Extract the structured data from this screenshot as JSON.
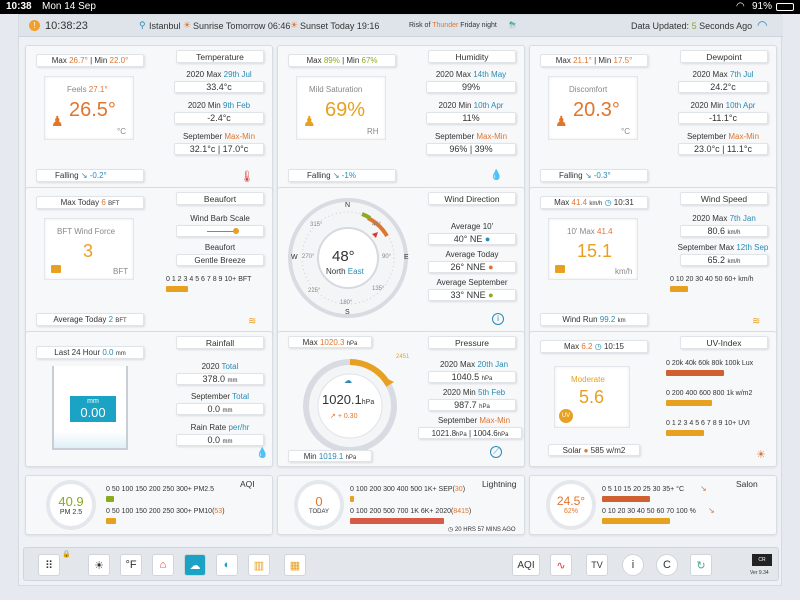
{
  "status": {
    "time": "10:38",
    "date": "Mon 14 Sep",
    "battery": "91%"
  },
  "header": {
    "clock": "10:38:23",
    "city": "Istanbul",
    "sunrise": "Sunrise Tomorrow 06:46",
    "sunset": "Sunset Today 19:16",
    "risk_prefix": "Risk of",
    "risk_word": "Thunder",
    "risk_when": "Friday night",
    "updated_prefix": "Data Updated:",
    "updated_num": "5",
    "updated_suffix": "Seconds Ago"
  },
  "temperature": {
    "title": "Temperature",
    "max_label": "Max",
    "max": "26.7°",
    "min_label": "Min",
    "min": "22.0°",
    "feels_label": "Feels",
    "feels": "27.1°",
    "value": "26.5°",
    "unit": "°C",
    "trend": "Falling",
    "trend_val": "-0.2°",
    "r1_a": "2020 Max",
    "r1_b": "29th Jul",
    "r1_v": "33.4°c",
    "r2_a": "2020 Min",
    "r2_b": "9th Feb",
    "r2_v": "-2.4°c",
    "r3_a": "September",
    "r3_b": "Max-Min",
    "r3_v": "32.1°c | 17.0°c"
  },
  "humidity": {
    "title": "Humidity",
    "max_label": "Max",
    "max": "89%",
    "min_label": "Min",
    "min": "67%",
    "desc": "Mild Saturation",
    "value": "69%",
    "unit": "RH",
    "trend": "Falling",
    "trend_val": "-1%",
    "r1_a": "2020 Max",
    "r1_b": "14th May",
    "r1_v": "99%",
    "r2_a": "2020 Min",
    "r2_b": "10th Apr",
    "r2_v": "11%",
    "r3_a": "September",
    "r3_b": "Max-Min",
    "r3_v": "96% | 39%"
  },
  "dewpoint": {
    "title": "Dewpoint",
    "max_label": "Max",
    "max": "21.1°",
    "min_label": "Min",
    "min": "17.5°",
    "desc": "Discomfort",
    "value": "20.3°",
    "unit": "°C",
    "trend": "Falling",
    "trend_val": "-0.3°",
    "r1_a": "2020 Max",
    "r1_b": "7th Jul",
    "r1_v": "24.2°c",
    "r2_a": "2020 Min",
    "r2_b": "10th Apr",
    "r2_v": "-11.1°c",
    "r3_a": "September",
    "r3_b": "Max-Min",
    "r3_v": "23.0°c | 11.1°c"
  },
  "beaufort": {
    "title": "Beaufort",
    "max_label": "Max Today",
    "max": "6",
    "bft": "BFT",
    "desc": "BFT Wind Force",
    "value": "3",
    "unit": "BFT",
    "barb_label": "Wind Barb Scale",
    "beaufort_label": "Beaufort",
    "beaufort_desc": "Gentle Breeze",
    "scale": "0 1 2 3 4 5 6 7 8 9 10+ BFT",
    "avg_label": "Average Today",
    "avg": "2"
  },
  "winddir": {
    "title": "Wind Direction",
    "deg": "48°",
    "dir_a": "North",
    "dir_b": "East",
    "avg10_label": "Average 10'",
    "avg10": "40°",
    "avg10_dir": "NE",
    "avgday_label": "Average Today",
    "avgday": "26°",
    "avgday_dir": "NNE",
    "avgsep_label": "Average September",
    "avgsep": "33°",
    "avgsep_dir": "NNE",
    "n": "N",
    "e": "E",
    "s": "S",
    "w": "W",
    "t45": "45°",
    "t90": "90°",
    "t135": "135°",
    "t180": "180°",
    "t225": "225°",
    "t270": "270°",
    "t315": "315°"
  },
  "windspeed": {
    "title": "Wind Speed",
    "max_label": "Max",
    "max": "41.4",
    "unit_small": "km/h",
    "max_time": "10:31",
    "ten_label": "10' Max",
    "ten_max": "41.4",
    "value": "15.1",
    "unit": "km/h",
    "r1_a": "2020 Max",
    "r1_b": "7th Jan",
    "r1_v": "80.6",
    "r1_u": "km/h",
    "r2_a": "September Max",
    "r2_b": "12th Sep",
    "r2_v": "65.2",
    "r2_u": "km/h",
    "scale": "0 10 20 30 40 50 60+ km/h",
    "run_label": "Wind Run",
    "run": "99.2",
    "run_unit": "km"
  },
  "rainfall": {
    "title": "Rainfall",
    "last_label": "Last 24 Hour",
    "last": "0.0",
    "last_unit": "mm",
    "gauge_unit": "mm",
    "gauge_val": "0.00",
    "r1_a": "2020",
    "r1_b": "Total",
    "r1_v": "378.0",
    "r1_u": "mm",
    "r2_a": "September",
    "r2_b": "Total",
    "r2_v": "0.0",
    "r2_u": "mm",
    "r3_a": "Rain Rate",
    "r3_b": "per/hr",
    "r3_v": "0.0",
    "r3_u": "mm"
  },
  "pressure": {
    "title": "Pressure",
    "max_label": "Max",
    "max": "1020.3",
    "unit": "hPa",
    "value": "1020.1",
    "trend_val": "+ 0.30",
    "min_label": "Min",
    "min": "1019.1",
    "r1_a": "2020 Max",
    "r1_b": "20th Jan",
    "r1_v": "1040.5",
    "r2_a": "2020 Min",
    "r2_b": "5th Feb",
    "r2_v": "987.7",
    "r3_a": "September",
    "r3_b": "Max-Min",
    "r3_v1": "1021.8",
    "r3_v2": "1004.6",
    "dial_top": "2451"
  },
  "uv": {
    "title": "UV-Index",
    "max_label": "Max",
    "max": "6.2",
    "max_time": "10:15",
    "desc": "Moderate",
    "value": "5.6",
    "badge": "UV",
    "solar_label": "Solar",
    "solar": "585 w/m2",
    "s1": "0 20k 40k 60k 80k 100k Lux",
    "s2": "0 200 400 600 800 1k w/m2",
    "s3": "0 1 2 3 4 5 6 7 8 9 10+ UVI"
  },
  "aqi": {
    "title": "AQI",
    "value": "40.9",
    "label": "PM 2.5",
    "s1": "0 50 100 150 200 250 300+ PM2.5",
    "s2a": "0 50 100 150 200 250 300+ PM10(",
    "s2b": "53",
    "s2c": ")"
  },
  "lightning": {
    "title": "Lightning",
    "value": "0",
    "label": "TODAY",
    "s1a": "0 100 200 300 400 500 1K+ SEP(",
    "s1b": "30",
    "s1c": ")",
    "s2a": "0 100 200 500 700 1K 6K+ 2020(",
    "s2b": "8415",
    "s2c": ")",
    "ago": "20 HRS 57 MINS AGO"
  },
  "salon": {
    "title": "Salon",
    "value": "24.5°",
    "hum": "62%",
    "s1": "0 5 10 15 20 25 30 35+ °C",
    "s2": "0 10 20 30 40 50 60 70 100 %"
  },
  "toolbar": {
    "f": "°F",
    "aqi": "AQI",
    "tv": "TV",
    "info": "i",
    "c": "C",
    "version": "Ver 9.34"
  }
}
